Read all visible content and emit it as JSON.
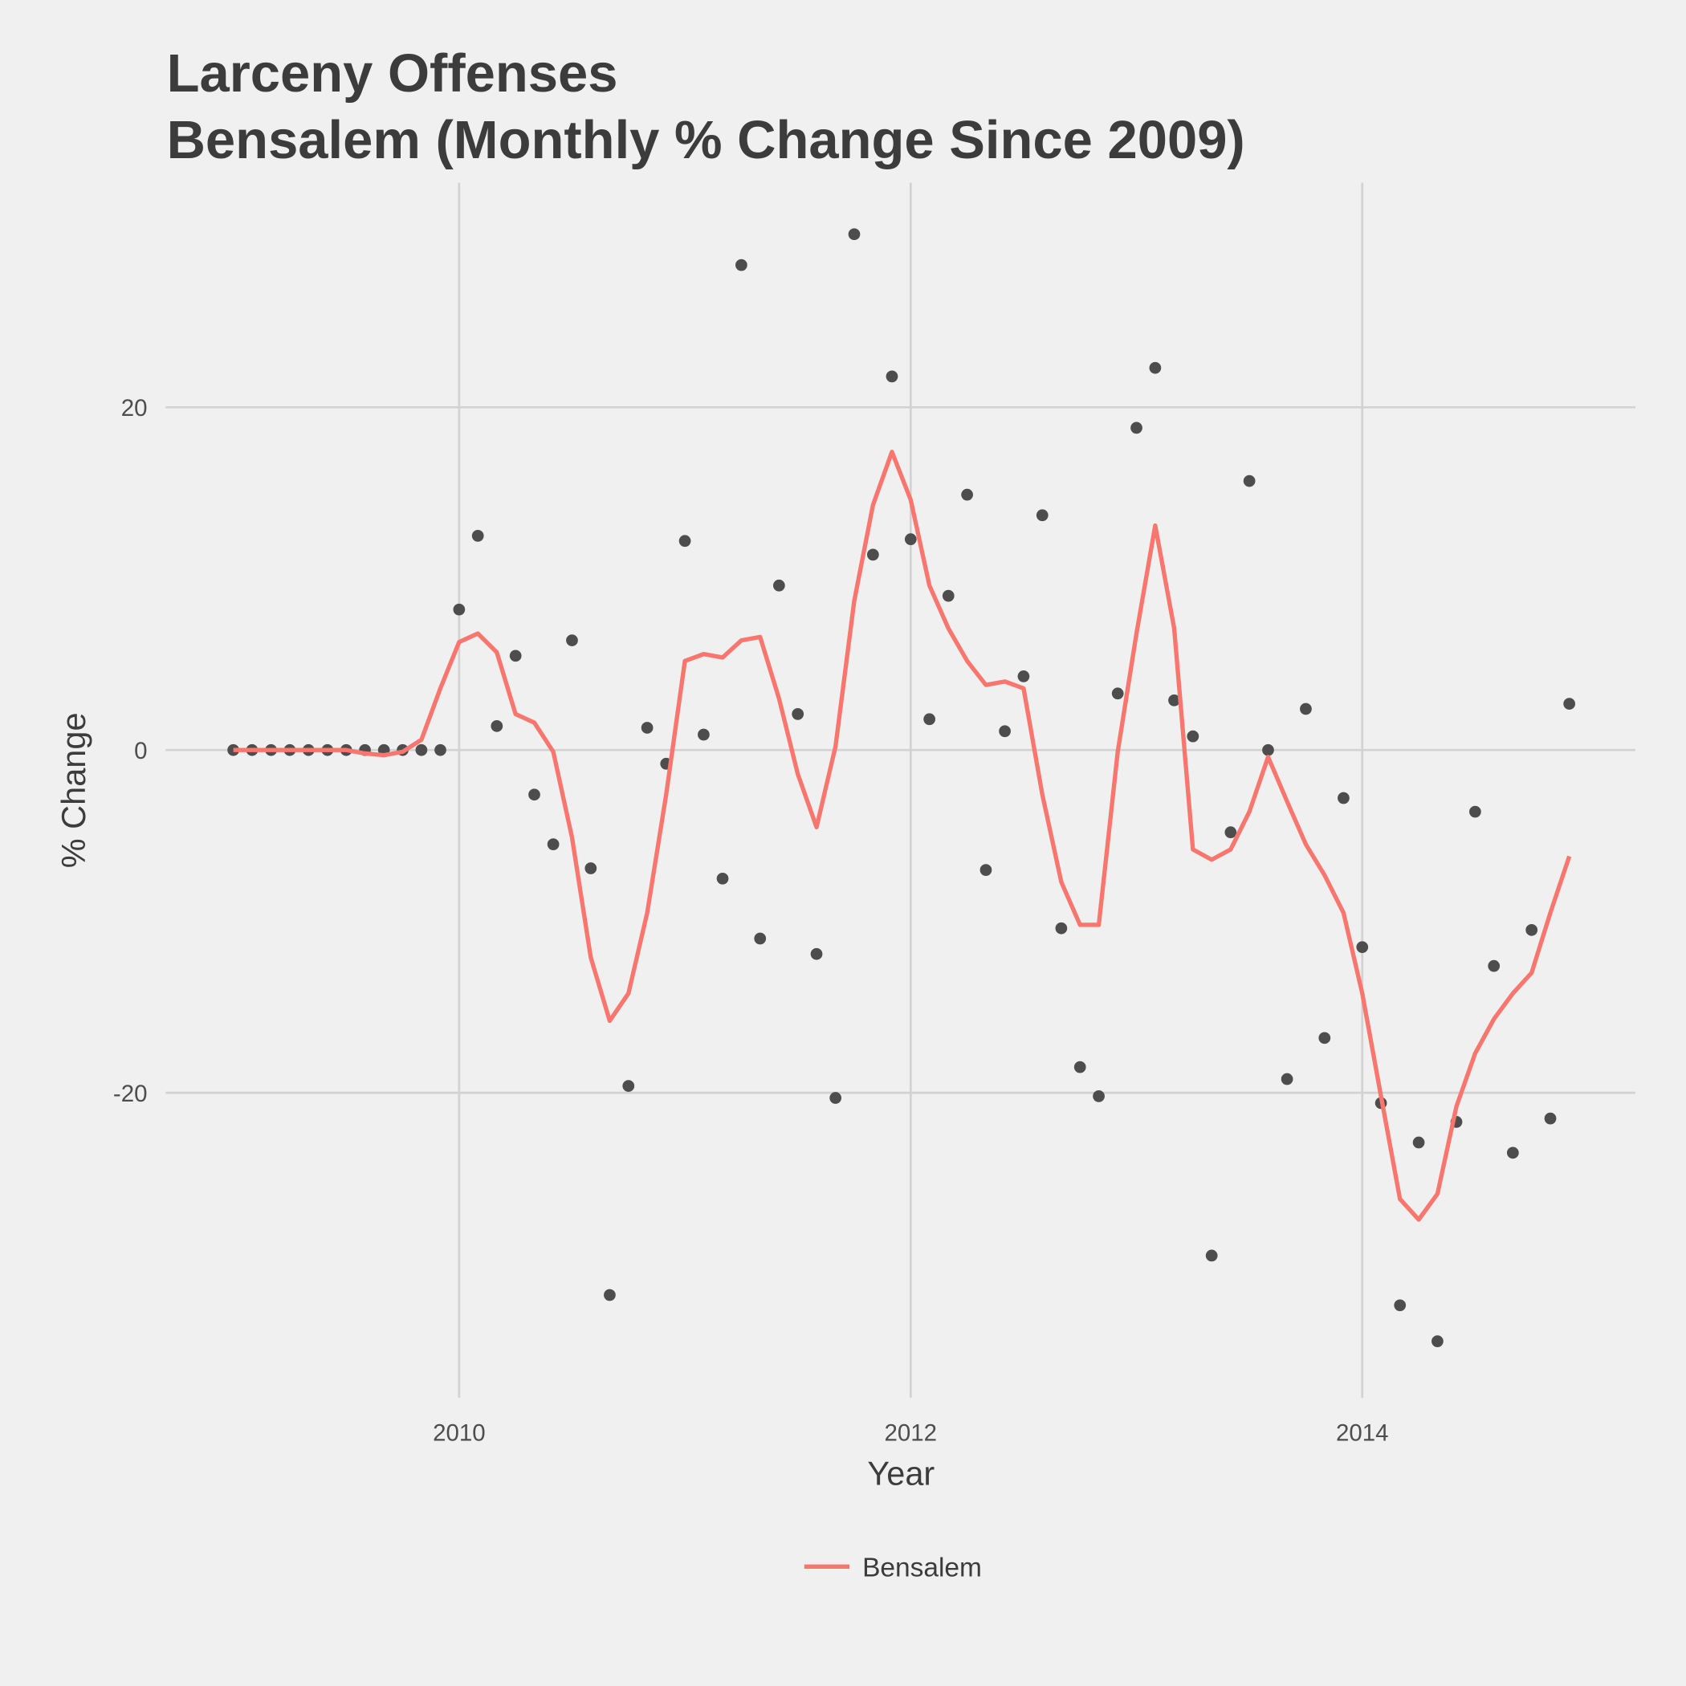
{
  "chart_data": {
    "type": "line",
    "title": "Larceny Offenses",
    "subtitle": "Bensalem (Monthly % Change Since 2009)",
    "x_label": "Year",
    "y_label": "% Change",
    "x": [
      2009,
      2009.083,
      2009.167,
      2009.25,
      2009.333,
      2009.417,
      2009.5,
      2009.583,
      2009.667,
      2009.75,
      2009.833,
      2009.917,
      2010,
      2010.083,
      2010.167,
      2010.25,
      2010.333,
      2010.417,
      2010.5,
      2010.583,
      2010.667,
      2010.75,
      2010.833,
      2010.917,
      2011,
      2011.083,
      2011.167,
      2011.25,
      2011.333,
      2011.417,
      2011.5,
      2011.583,
      2011.667,
      2011.75,
      2011.833,
      2011.917,
      2012,
      2012.083,
      2012.167,
      2012.25,
      2012.333,
      2012.417,
      2012.5,
      2012.583,
      2012.667,
      2012.75,
      2012.833,
      2012.917,
      2013,
      2013.083,
      2013.167,
      2013.25,
      2013.333,
      2013.417,
      2013.5,
      2013.583,
      2013.667,
      2013.75,
      2013.833,
      2013.917,
      2014,
      2014.083,
      2014.167,
      2014.25,
      2014.333,
      2014.417,
      2014.5,
      2014.583,
      2014.667,
      2014.75,
      2014.833,
      2014.917
    ],
    "series": [
      {
        "name": "Bensalem",
        "color": "#f8766d",
        "values": [
          0,
          0,
          0,
          0,
          0,
          0,
          0,
          -0.2,
          -0.3,
          -0.1,
          0.6,
          3.6,
          6.3,
          6.8,
          5.7,
          2.1,
          1.6,
          -0.1,
          -5.1,
          -12.1,
          -15.8,
          -14.2,
          -9.5,
          -2.6,
          5.2,
          5.6,
          5.4,
          6.4,
          6.6,
          3.0,
          -1.4,
          -4.5,
          0.2,
          8.7,
          14.3,
          17.4,
          14.6,
          9.6,
          7.1,
          5.2,
          3.8,
          4.0,
          3.6,
          -2.6,
          -7.7,
          -10.2,
          -10.2,
          -0.1,
          6.8,
          13.1,
          7.1,
          -5.8,
          -6.4,
          -5.8,
          -3.6,
          -0.4,
          -3.0,
          -5.5,
          -7.3,
          -9.5,
          -14.2,
          -20.2,
          -26.2,
          -27.4,
          -25.9,
          -20.8,
          -17.7,
          -15.7,
          -14.2,
          -13.0,
          -9.5,
          -6.2
        ]
      }
    ],
    "points": {
      "color": "#4d4d4d",
      "values": [
        0,
        0,
        0,
        0,
        0,
        0,
        0,
        0,
        0,
        0,
        0,
        0,
        8.2,
        12.5,
        1.4,
        5.5,
        -2.6,
        -5.5,
        6.4,
        -6.9,
        -31.8,
        -19.6,
        1.3,
        -0.8,
        12.2,
        0.9,
        -7.5,
        28.3,
        -11.0,
        9.6,
        2.1,
        -11.9,
        -20.3,
        30.1,
        11.4,
        21.8,
        12.3,
        1.8,
        9.0,
        14.9,
        -7.0,
        1.1,
        4.3,
        13.7,
        -10.4,
        -18.5,
        -20.2,
        3.3,
        18.8,
        22.3,
        2.9,
        0.8,
        -29.5,
        -4.8,
        15.7,
        0,
        -19.2,
        2.4,
        -16.8,
        -2.8,
        -11.5,
        -20.6,
        -32.4,
        -22.9,
        -34.5,
        -21.7,
        -3.6,
        -12.6,
        -23.5,
        -10.5,
        -21.5,
        2.7
      ]
    },
    "xlim": [
      2008.7,
      2015.21
    ],
    "ylim": [
      -37.8,
      33.1
    ],
    "xticks": [
      2010,
      2012,
      2014
    ],
    "yticks": [
      -20,
      0,
      20
    ],
    "grid": true,
    "legend": "bottom"
  }
}
